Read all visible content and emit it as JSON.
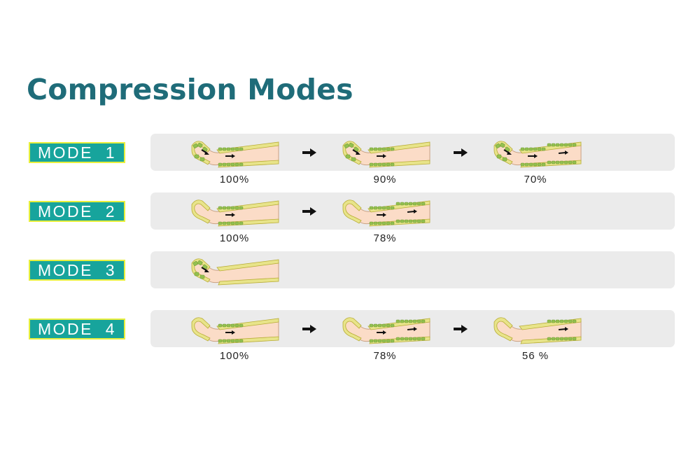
{
  "title": "Compression Modes",
  "colors": {
    "title": "#1f6c79",
    "label_bg": "#17a49c",
    "label_border": "#e8ef3c",
    "label_text": "#ffffff",
    "band_bg": "#ebebeb",
    "skin": "#fbdcc7",
    "skin_outline": "#c9a183",
    "cuff": "#e8e48a",
    "cuff_outline": "#b8ac35",
    "chamber": "#93c050",
    "arrow": "#111111",
    "text": "#222222"
  },
  "modes": [
    {
      "label": "MODE  1",
      "steps": [
        {
          "percent": "100%",
          "chambers": [
            "foot",
            "calf"
          ]
        },
        {
          "percent": "90%",
          "chambers": [
            "foot",
            "calf"
          ]
        },
        {
          "percent": "70%",
          "chambers": [
            "foot",
            "calf",
            "thigh"
          ]
        }
      ]
    },
    {
      "label": "MODE  2",
      "steps": [
        {
          "percent": "100%",
          "chambers": [
            "calf"
          ]
        },
        {
          "percent": "78%",
          "chambers": [
            "calf",
            "thigh"
          ]
        }
      ]
    },
    {
      "label": "MODE  3",
      "steps": [
        {
          "percent": "",
          "chambers": [
            "foot"
          ]
        }
      ]
    },
    {
      "label": "MODE  4",
      "steps": [
        {
          "percent": "100%",
          "chambers": [
            "calf"
          ]
        },
        {
          "percent": "78%",
          "chambers": [
            "calf",
            "thigh"
          ]
        },
        {
          "percent": "56 %",
          "chambers": [
            "thigh"
          ]
        }
      ]
    }
  ]
}
